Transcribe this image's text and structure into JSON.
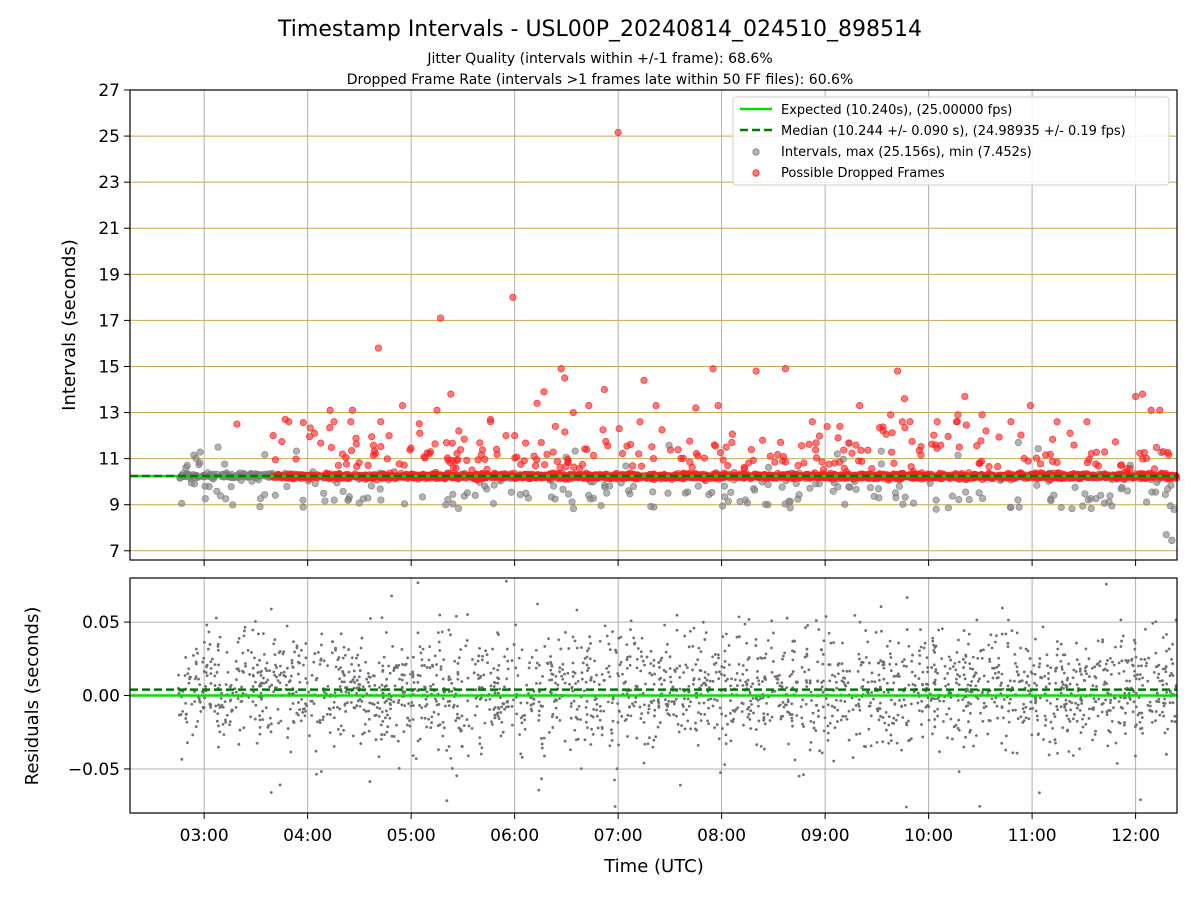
{
  "chart_data": {
    "type": "scatter",
    "title": "Timestamp Intervals - USL00P_20240814_024510_898514",
    "subtitle_lines": [
      "Jitter Quality (intervals within +/-1 frame): 68.6%",
      "Dropped Frame Rate (intervals >1 frames late within 50 FF files): 60.6%"
    ],
    "xlabel": "Time (UTC)",
    "x_ticks": [
      "03:00",
      "04:00",
      "05:00",
      "06:00",
      "07:00",
      "08:00",
      "09:00",
      "10:00",
      "11:00",
      "12:00"
    ],
    "x_range": [
      "02:17",
      "12:24"
    ],
    "panels": [
      {
        "name": "intervals",
        "ylabel": "Intervals (seconds)",
        "ylim": [
          6.6,
          27.0
        ],
        "y_ticks": [
          "7",
          "9",
          "11",
          "13",
          "15",
          "17",
          "19",
          "21",
          "23",
          "25",
          "27"
        ],
        "grid": true,
        "legend_position": "upper right",
        "legend": [
          {
            "label": "Expected (10.240s), (25.00000 fps)",
            "style": "solid-line",
            "color": "#00e000"
          },
          {
            "label": "Median (10.244 +/- 0.090 s), (24.98935 +/- 0.19 fps)",
            "style": "dashed-line",
            "color": "#007a00"
          },
          {
            "label": "Intervals, max (25.156s), min (7.452s)",
            "style": "marker",
            "color": "#7f7f7f"
          },
          {
            "label": "Possible Dropped Frames",
            "style": "marker",
            "color": "#ff2020"
          }
        ],
        "expected": 10.24,
        "median": 10.244,
        "median_spread": 0.09,
        "max_interval": 25.156,
        "min_interval": 7.452,
        "dropped_outliers": [
          {
            "t": "03:19",
            "y": 12.5
          },
          {
            "t": "03:40",
            "y": 12.0
          },
          {
            "t": "03:47",
            "y": 12.7
          },
          {
            "t": "04:04",
            "y": 12.1
          },
          {
            "t": "04:13",
            "y": 13.1
          },
          {
            "t": "04:26",
            "y": 13.1
          },
          {
            "t": "04:41",
            "y": 15.8
          },
          {
            "t": "04:55",
            "y": 13.3
          },
          {
            "t": "05:05",
            "y": 12.1
          },
          {
            "t": "05:15",
            "y": 13.1
          },
          {
            "t": "05:17",
            "y": 17.1
          },
          {
            "t": "05:23",
            "y": 13.8
          },
          {
            "t": "05:46",
            "y": 12.7
          },
          {
            "t": "05:55",
            "y": 12.0
          },
          {
            "t": "05:59",
            "y": 18.0
          },
          {
            "t": "06:00",
            "y": 12.0
          },
          {
            "t": "06:13",
            "y": 13.4
          },
          {
            "t": "06:17",
            "y": 13.9
          },
          {
            "t": "06:27",
            "y": 14.9
          },
          {
            "t": "06:29",
            "y": 14.5
          },
          {
            "t": "06:34",
            "y": 13.0
          },
          {
            "t": "06:43",
            "y": 13.3
          },
          {
            "t": "06:52",
            "y": 14.0
          },
          {
            "t": "07:00",
            "y": 25.156
          },
          {
            "t": "07:15",
            "y": 14.4
          },
          {
            "t": "07:22",
            "y": 13.3
          },
          {
            "t": "07:45",
            "y": 13.2
          },
          {
            "t": "07:55",
            "y": 14.9
          },
          {
            "t": "07:58",
            "y": 13.3
          },
          {
            "t": "08:20",
            "y": 14.8
          },
          {
            "t": "08:37",
            "y": 14.9
          },
          {
            "t": "09:20",
            "y": 13.3
          },
          {
            "t": "09:38",
            "y": 12.9
          },
          {
            "t": "09:42",
            "y": 14.8
          },
          {
            "t": "09:46",
            "y": 13.6
          },
          {
            "t": "10:05",
            "y": 12.6
          },
          {
            "t": "10:17",
            "y": 12.9
          },
          {
            "t": "10:21",
            "y": 13.7
          },
          {
            "t": "10:31",
            "y": 12.9
          },
          {
            "t": "10:59",
            "y": 13.3
          },
          {
            "t": "11:22",
            "y": 12.1
          },
          {
            "t": "12:00",
            "y": 13.7
          },
          {
            "t": "12:04",
            "y": 13.8
          },
          {
            "t": "12:09",
            "y": 13.1
          },
          {
            "t": "12:14",
            "y": 13.1
          }
        ],
        "series_colors": {
          "intervals": "#7f7f7f",
          "dropped": "#ff2020",
          "expected": "#00e000",
          "median": "#007a00",
          "grid_y": "#c8a84e",
          "grid_x": "#b0b0b0"
        }
      },
      {
        "name": "residuals",
        "ylabel": "Residuals (seconds)",
        "ylim": [
          -0.08,
          0.08
        ],
        "y_ticks": [
          "0.05",
          "0.00",
          "−0.05"
        ],
        "grid": true,
        "expected": 0.0,
        "median_offset": 0.004,
        "residual_spread": 0.02
      }
    ]
  }
}
